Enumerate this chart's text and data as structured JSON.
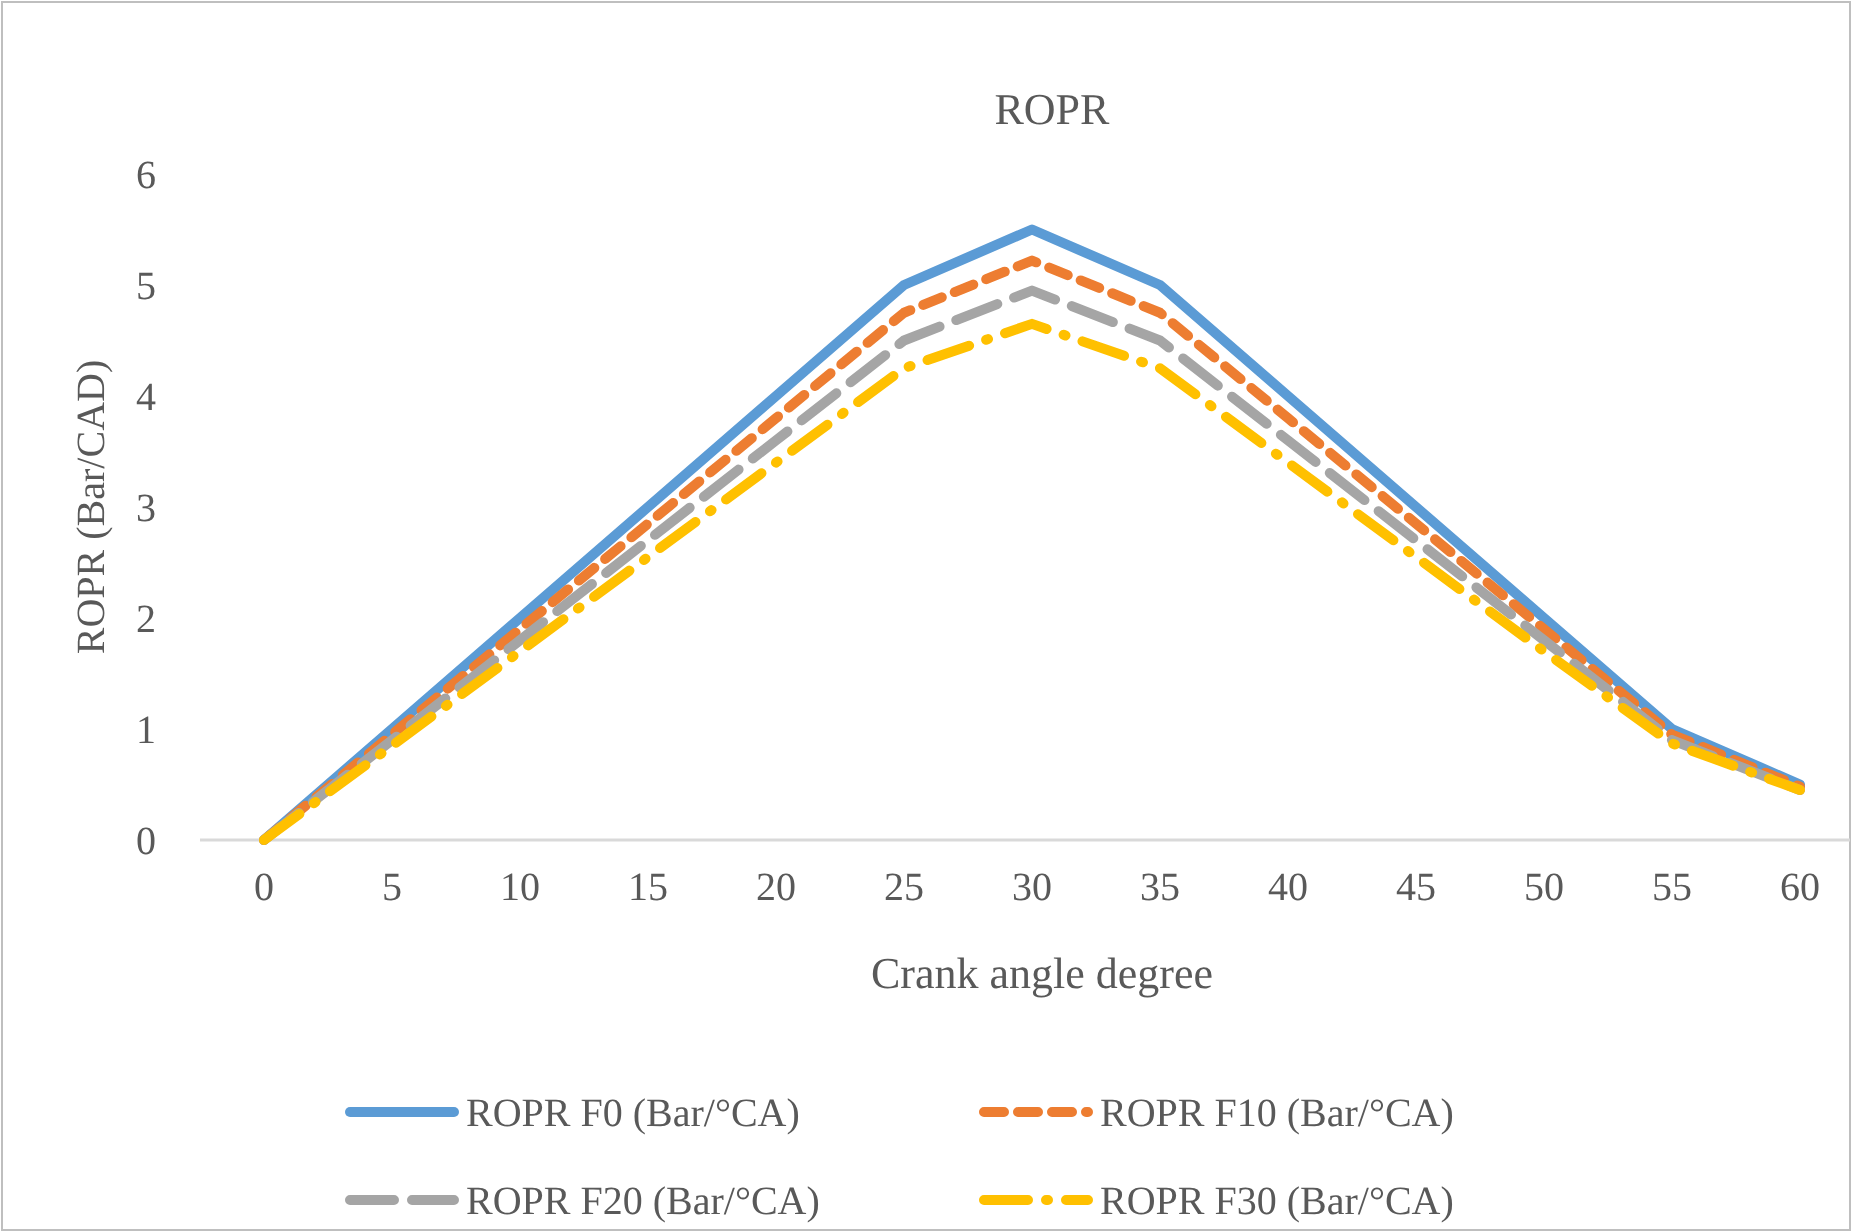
{
  "chart_data": {
    "type": "line",
    "title": "ROPR",
    "xlabel": "Crank angle degree",
    "ylabel": "ROPR (Bar/CAD)",
    "categories": [
      "0",
      "5",
      "10",
      "15",
      "20",
      "25",
      "30",
      "35",
      "40",
      "45",
      "50",
      "55",
      "60"
    ],
    "ylim": [
      0,
      6
    ],
    "yticks": [
      0,
      1,
      2,
      3,
      4,
      5,
      6
    ],
    "grid": false,
    "legend": "bottom",
    "series": [
      {
        "name": "ROPR F0 (Bar/°CA)",
        "color": "#5b9bd5",
        "line_style": "solid",
        "values": [
          0,
          1,
          2,
          3,
          4,
          5,
          5.5,
          5,
          4,
          3,
          2,
          1,
          0.5
        ]
      },
      {
        "name": "ROPR F10 (Bar/°CA)",
        "color": "#ed7d31",
        "line_style": "dashed",
        "values": [
          0,
          0.95,
          1.9,
          2.85,
          3.8,
          4.75,
          5.22,
          4.75,
          3.8,
          2.85,
          1.9,
          0.95,
          0.48
        ]
      },
      {
        "name": "ROPR F20 (Bar/°CA)",
        "color": "#a5a5a5",
        "line_style": "longdash",
        "values": [
          0,
          0.9,
          1.8,
          2.7,
          3.6,
          4.5,
          4.95,
          4.5,
          3.6,
          2.7,
          1.8,
          0.9,
          0.45
        ]
      },
      {
        "name": "ROPR F30 (Bar/°CA)",
        "color": "#ffc000",
        "line_style": "dashdot",
        "values": [
          0,
          0.85,
          1.7,
          2.55,
          3.4,
          4.25,
          4.65,
          4.25,
          3.4,
          2.55,
          1.7,
          0.87,
          0.45
        ]
      }
    ]
  }
}
